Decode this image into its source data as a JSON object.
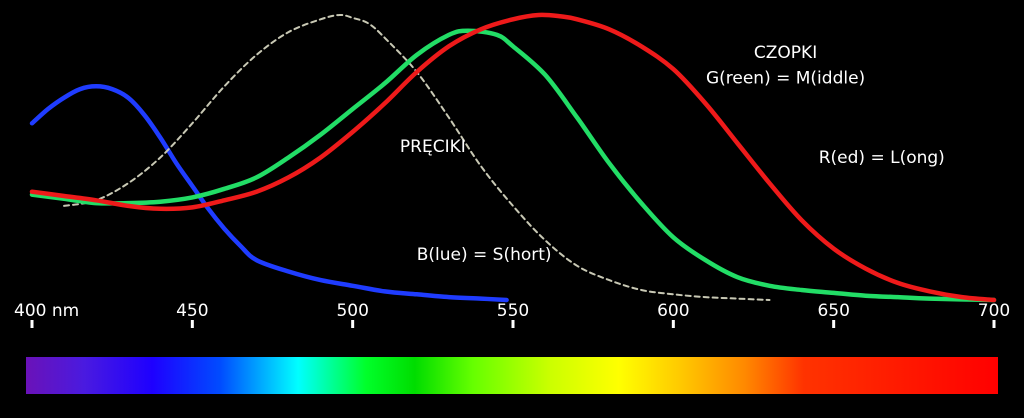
{
  "chart_data": {
    "type": "line",
    "x_unit": "nm",
    "xlim": [
      400,
      700
    ],
    "ylim": [
      0,
      1
    ],
    "background": "#000000",
    "x_ticks": [
      {
        "value": 400,
        "label": "400 nm"
      },
      {
        "value": 450,
        "label": "450"
      },
      {
        "value": 500,
        "label": "500"
      },
      {
        "value": 550,
        "label": "550"
      },
      {
        "value": 600,
        "label": "600"
      },
      {
        "value": 650,
        "label": "650"
      },
      {
        "value": 700,
        "label": "700"
      }
    ],
    "series": [
      {
        "key": "blue",
        "color": "#1f3cff",
        "dashed": false,
        "points": [
          [
            400,
            0.62
          ],
          [
            405,
            0.67
          ],
          [
            410,
            0.71
          ],
          [
            415,
            0.74
          ],
          [
            420,
            0.75
          ],
          [
            425,
            0.74
          ],
          [
            430,
            0.71
          ],
          [
            435,
            0.65
          ],
          [
            440,
            0.57
          ],
          [
            445,
            0.48
          ],
          [
            450,
            0.4
          ],
          [
            455,
            0.32
          ],
          [
            460,
            0.25
          ],
          [
            465,
            0.19
          ],
          [
            470,
            0.14
          ],
          [
            480,
            0.1
          ],
          [
            490,
            0.07
          ],
          [
            500,
            0.05
          ],
          [
            510,
            0.03
          ],
          [
            520,
            0.02
          ],
          [
            530,
            0.01
          ],
          [
            540,
            0.005
          ],
          [
            548,
            0.0
          ]
        ]
      },
      {
        "key": "rods",
        "color": "#c8c8b4",
        "dashed": true,
        "points": [
          [
            410,
            0.33
          ],
          [
            420,
            0.35
          ],
          [
            430,
            0.41
          ],
          [
            440,
            0.5
          ],
          [
            450,
            0.62
          ],
          [
            460,
            0.75
          ],
          [
            470,
            0.86
          ],
          [
            480,
            0.94
          ],
          [
            490,
            0.985
          ],
          [
            496,
            1.0
          ],
          [
            500,
            0.99
          ],
          [
            505,
            0.97
          ],
          [
            510,
            0.92
          ],
          [
            520,
            0.8
          ],
          [
            530,
            0.64
          ],
          [
            540,
            0.47
          ],
          [
            550,
            0.33
          ],
          [
            560,
            0.21
          ],
          [
            570,
            0.12
          ],
          [
            580,
            0.07
          ],
          [
            590,
            0.035
          ],
          [
            600,
            0.02
          ],
          [
            610,
            0.01
          ],
          [
            620,
            0.005
          ],
          [
            630,
            0.0
          ]
        ]
      },
      {
        "key": "green",
        "color": "#22dd66",
        "dashed": false,
        "points": [
          [
            400,
            0.37
          ],
          [
            410,
            0.355
          ],
          [
            420,
            0.34
          ],
          [
            430,
            0.34
          ],
          [
            440,
            0.345
          ],
          [
            450,
            0.36
          ],
          [
            460,
            0.39
          ],
          [
            470,
            0.43
          ],
          [
            480,
            0.5
          ],
          [
            490,
            0.58
          ],
          [
            500,
            0.67
          ],
          [
            510,
            0.76
          ],
          [
            520,
            0.86
          ],
          [
            530,
            0.93
          ],
          [
            536,
            0.945
          ],
          [
            545,
            0.93
          ],
          [
            550,
            0.89
          ],
          [
            560,
            0.79
          ],
          [
            570,
            0.64
          ],
          [
            580,
            0.48
          ],
          [
            590,
            0.34
          ],
          [
            600,
            0.22
          ],
          [
            610,
            0.14
          ],
          [
            620,
            0.08
          ],
          [
            630,
            0.05
          ],
          [
            640,
            0.035
          ],
          [
            650,
            0.025
          ],
          [
            660,
            0.015
          ],
          [
            670,
            0.01
          ],
          [
            680,
            0.005
          ],
          [
            700,
            0.0
          ]
        ]
      },
      {
        "key": "red",
        "color": "#ee1a1a",
        "dashed": false,
        "points": [
          [
            400,
            0.38
          ],
          [
            410,
            0.365
          ],
          [
            420,
            0.35
          ],
          [
            430,
            0.33
          ],
          [
            440,
            0.32
          ],
          [
            450,
            0.325
          ],
          [
            460,
            0.35
          ],
          [
            470,
            0.38
          ],
          [
            480,
            0.43
          ],
          [
            490,
            0.5
          ],
          [
            500,
            0.59
          ],
          [
            510,
            0.69
          ],
          [
            520,
            0.8
          ],
          [
            530,
            0.89
          ],
          [
            540,
            0.95
          ],
          [
            550,
            0.985
          ],
          [
            558,
            1.0
          ],
          [
            565,
            0.995
          ],
          [
            570,
            0.985
          ],
          [
            580,
            0.95
          ],
          [
            590,
            0.89
          ],
          [
            600,
            0.81
          ],
          [
            610,
            0.69
          ],
          [
            620,
            0.55
          ],
          [
            630,
            0.41
          ],
          [
            640,
            0.28
          ],
          [
            650,
            0.18
          ],
          [
            660,
            0.11
          ],
          [
            670,
            0.06
          ],
          [
            680,
            0.03
          ],
          [
            690,
            0.01
          ],
          [
            700,
            0.0
          ]
        ]
      }
    ],
    "annotations": [
      {
        "text": "CZOPKI",
        "x": 635,
        "y": 0.85
      },
      {
        "text": "G(reen) = M(iddle)",
        "x": 635,
        "y": 0.76
      },
      {
        "text": "PRĘCIKI",
        "x": 525,
        "y": 0.52
      },
      {
        "text": "R(ed) = L(ong)",
        "x": 665,
        "y": 0.48
      },
      {
        "text": "B(lue) = S(hort)",
        "x": 541,
        "y": 0.14
      }
    ],
    "spectrum_bar": {
      "colors": [
        "#6a12b8",
        "#4a1ae0",
        "#1e00ff",
        "#004cff",
        "#00ffff",
        "#00ff2a",
        "#00dd00",
        "#66ff00",
        "#ccff00",
        "#ffff00",
        "#ffcc00",
        "#ff8800",
        "#ff3300",
        "#ff0000"
      ],
      "stops": [
        0,
        0.06,
        0.13,
        0.2,
        0.28,
        0.35,
        0.4,
        0.46,
        0.54,
        0.61,
        0.67,
        0.74,
        0.8,
        1.0
      ]
    }
  }
}
